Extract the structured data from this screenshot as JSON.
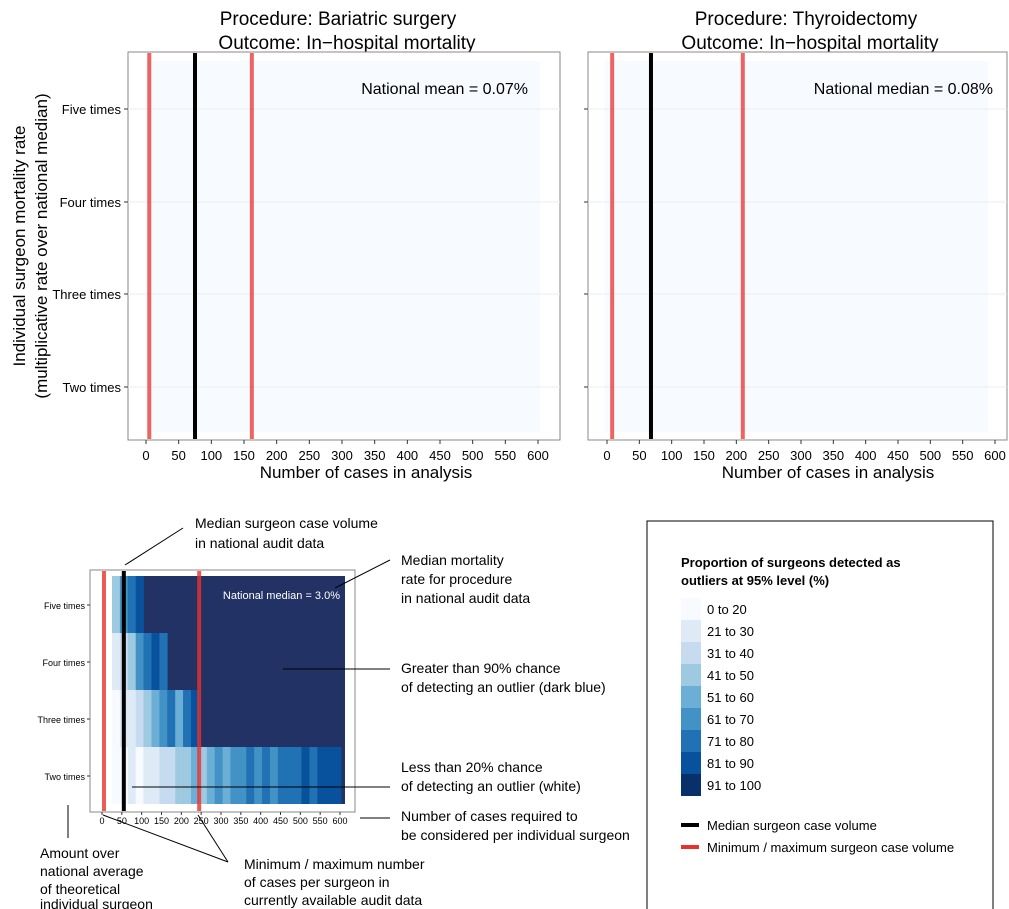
{
  "chart_data": [
    {
      "type": "heatmap",
      "title_line1": "Procedure: Bariatric surgery",
      "title_line2": "Outcome: In−hospital mortality",
      "xlabel": "Number of cases in analysis",
      "ylabel_line1": "Individual surgeon mortality rate",
      "ylabel_line2": "(multiplicative rate over national median)",
      "xticks": [
        0,
        50,
        100,
        150,
        200,
        250,
        300,
        350,
        400,
        450,
        500,
        550,
        600
      ],
      "yticks": [
        "Two times",
        "Three times",
        "Four times",
        "Five times"
      ],
      "xlim": [
        -25,
        625
      ],
      "annotation": "National mean = 0.07%",
      "median_case_volume": 75,
      "min_case_volume": 5,
      "max_case_volume": 162,
      "fill_class": "0 to 20"
    },
    {
      "type": "heatmap",
      "title_line1": "Procedure: Thyroidectomy",
      "title_line2": "Outcome: In−hospital mortality",
      "xlabel": "Number of cases in analysis",
      "xticks": [
        0,
        50,
        100,
        150,
        200,
        250,
        300,
        350,
        400,
        450,
        500,
        550,
        600
      ],
      "xlim": [
        -25,
        625
      ],
      "annotation": "National median = 0.08%",
      "median_case_volume": 68,
      "min_case_volume": 8,
      "max_case_volume": 210,
      "fill_class": "0 to 20"
    },
    {
      "type": "heatmap",
      "xticks": [
        0,
        50,
        100,
        150,
        200,
        250,
        300,
        350,
        400,
        450,
        500,
        550,
        600
      ],
      "yticks": [
        "Two times",
        "Three times",
        "Four times",
        "Five times"
      ],
      "xlim": [
        -25,
        625
      ],
      "annotation": "National median = 3.0%",
      "median_case_volume": 55,
      "min_case_volume": 5,
      "max_case_volume": 245
    }
  ],
  "callouts": {
    "median_volume_1": "Median surgeon case volume",
    "median_volume_2": "in national audit data",
    "median_mortality_1": "Median mortality",
    "median_mortality_2": "rate for procedure",
    "median_mortality_3": "in national audit data",
    "greater90_1": "Greater than 90% chance",
    "greater90_2": "of detecting an outlier (dark blue)",
    "less20_1": "Less than 20% chance",
    "less20_2": "of detecting an outlier (white)",
    "cases_required_1": "Number of cases required to",
    "cases_required_2": "be considered per individual surgeon",
    "amount_over_1": "Amount over",
    "amount_over_2": "national average",
    "amount_over_3": "of theoretical",
    "amount_over_4": "individual surgeon",
    "minmax_1": "Minimum / maximum number",
    "minmax_2": "of cases per surgeon in",
    "minmax_3": "currently available audit data"
  },
  "legend": {
    "title_line1": "Proportion of surgeons detected as",
    "title_line2": "outliers at 95% level (%)",
    "items": [
      {
        "label": "0 to 20",
        "color": "#f7fbff"
      },
      {
        "label": "21 to 30",
        "color": "#deebf7"
      },
      {
        "label": "31 to 40",
        "color": "#c6dbef"
      },
      {
        "label": "41 to 50",
        "color": "#9ecae1"
      },
      {
        "label": "51 to 60",
        "color": "#6baed6"
      },
      {
        "label": "61 to 70",
        "color": "#4292c6"
      },
      {
        "label": "71 to 80",
        "color": "#2171b5"
      },
      {
        "label": "81 to 90",
        "color": "#08519c"
      },
      {
        "label": "91 to 100",
        "color": "#08306b"
      }
    ],
    "median_label": "Median surgeon case volume",
    "minmax_label": "Minimum / maximum surgeon case volume",
    "median_color": "#000000",
    "minmax_color": "#e8312f"
  },
  "example_rows": {
    "Five times": [
      "#9ecae1",
      "#4292c6",
      "#2171b5",
      "#08519c"
    ],
    "Four times": [
      "#deebf7",
      "#c6dbef",
      "#9ecae1",
      "#4292c6",
      "#2171b5",
      "#08519c",
      "#2171b5"
    ],
    "Three times": [
      "#f7fbff",
      "#deebf7",
      "#deebf7",
      "#c6dbef",
      "#9ecae1",
      "#6baed6",
      "#4292c6",
      "#2171b5",
      "#6baed6",
      "#2171b5",
      "#08519c"
    ],
    "Two times": [
      "#f7fbff",
      "#f7fbff",
      "#deebf7",
      "#f7fbff",
      "#deebf7",
      "#deebf7",
      "#c6dbef",
      "#c6dbef",
      "#9ecae1",
      "#9ecae1",
      "#6baed6",
      "#9ecae1",
      "#6baed6",
      "#4292c6",
      "#6baed6",
      "#4292c6",
      "#4292c6",
      "#2171b5",
      "#4292c6",
      "#2171b5",
      "#4292c6",
      "#2171b5",
      "#2171b5",
      "#2171b5",
      "#08519c",
      "#2171b5",
      "#08519c",
      "#08519c",
      "#08519c"
    ]
  },
  "example_full_color": "#233265"
}
